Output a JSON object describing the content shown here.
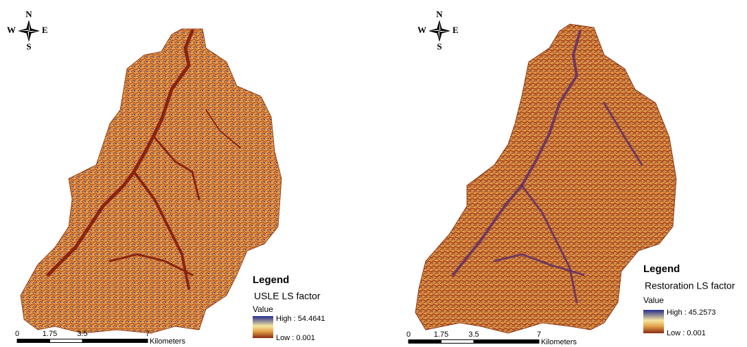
{
  "maps": [
    {
      "compass": {
        "n": "N",
        "s": "S",
        "w": "W",
        "e": "E"
      },
      "legend": {
        "title": "Legend",
        "layer": "USLE LS factor",
        "field": "Value",
        "high": "High : 54.4641",
        "low": "Low : 0.001"
      },
      "scale_bar": {
        "ticks": [
          0,
          1.75,
          3.5,
          7
        ],
        "unit": "Kilometers"
      }
    },
    {
      "compass": {
        "n": "N",
        "s": "S",
        "w": "W",
        "e": "E"
      },
      "legend": {
        "title": "Legend",
        "layer": "Restoration LS factor",
        "field": "Value",
        "high": "High : 45.2573",
        "low": "Low : 0.001"
      },
      "scale_bar": {
        "ticks": [
          0,
          1.75,
          3.5,
          7
        ],
        "unit": "Kilometers"
      }
    }
  ]
}
